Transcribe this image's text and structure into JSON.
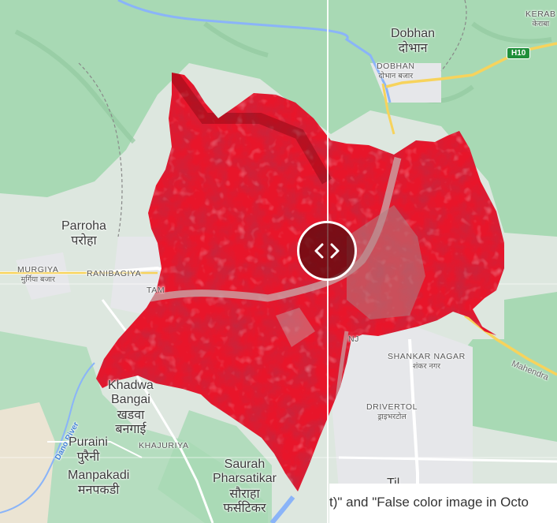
{
  "map": {
    "colors": {
      "forest": "#a8d9b4",
      "land": "#dde7df",
      "urban": "#e6e7ea",
      "false_color_red": "#e8152a",
      "road_yellow": "#f7d35c",
      "water": "#8ab4f8",
      "sand": "#ebe4d3"
    },
    "places": {
      "dobhan": {
        "en": "Dobhan",
        "ne": "दोभान"
      },
      "dobhan_bazar": {
        "en": "DOBHAN",
        "ne": "दोभान बजार"
      },
      "kerab": {
        "en": "KERAB",
        "ne": "केराबा"
      },
      "parroha": {
        "en": "Parroha",
        "ne": "परोहा"
      },
      "murgiya": {
        "en": "MURGIYA",
        "ne": "मुर्गिया बजार"
      },
      "ranibagiya": {
        "en": "RANIBAGIYA"
      },
      "tam": {
        "en": "TAM"
      },
      "khadwa_bangai": {
        "en1": "Khadwa",
        "en2": "Bangai",
        "ne1": "खडवा",
        "ne2": "बनगाई"
      },
      "puraini": {
        "en": "Puraini",
        "ne": "पुरैनी"
      },
      "manpakadi": {
        "en": "Manpakadi",
        "ne": "मनपकडी"
      },
      "khajuriya": {
        "en": "KHAJURIYA"
      },
      "saurah": {
        "en1": "Saurah",
        "en2": "Pharsatikar",
        "ne1": "सौराहा",
        "ne2": "फर्सटिकर"
      },
      "shankar_nagar": {
        "en": "SHANKAR NAGAR",
        "ne": "शंकर नगर"
      },
      "drivertol": {
        "en": "DRIVERTOL",
        "ne": "ड्राइभरटोल"
      },
      "nj": {
        "en": "NJ"
      },
      "tilo": {
        "en": "Til"
      }
    },
    "rivers": {
      "dano": "Dano River"
    },
    "roads": {
      "mahendra": "Mahendra",
      "h10": "H10"
    },
    "icons": {
      "compare": "chevron-left-right-icon"
    }
  },
  "caption": "t)\" and \"False color image in Octo"
}
